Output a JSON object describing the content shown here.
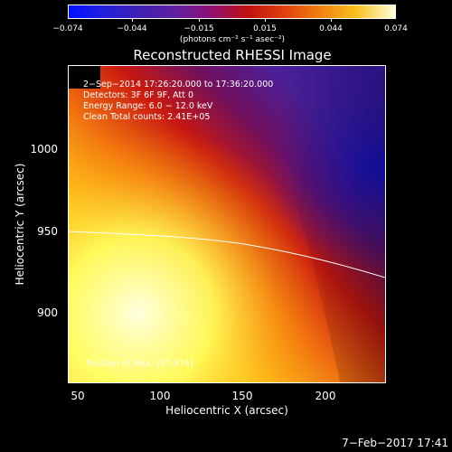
{
  "colorbar": {
    "ticks": [
      "−0.074",
      "−0.044",
      "−0.015",
      "0.015",
      "0.044",
      "0.074"
    ],
    "unit": "(photons cm⁻² s⁻¹ asec⁻²)"
  },
  "plot": {
    "title": "Reconstructed RHESSI Image",
    "info_lines": [
      "2−Sep−2014 17:26:20.000 to 17:36:20.000",
      "Detectors: 3F 6F 9F, Att 0",
      "Energy Range: 6.0 − 12.0 keV",
      "Clean     Total counts: 2.41E+05"
    ],
    "position_label": "Position of Max: [97,874]",
    "x_axis_title": "Heliocentric X (arcsec)",
    "y_axis_title": "Heliocentric Y (arcsec)",
    "x_ticks": [
      "50",
      "100",
      "150",
      "200"
    ],
    "y_ticks": [
      "1000",
      "950",
      "900"
    ]
  },
  "footer": {
    "date": "7−Feb−2017 17:41"
  }
}
